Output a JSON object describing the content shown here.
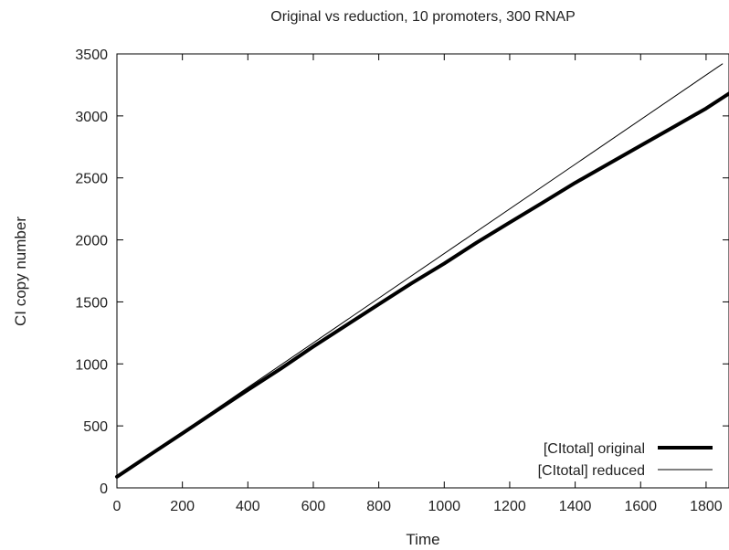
{
  "chart_data": {
    "type": "line",
    "title": "Original vs reduction, 10 promoters, 300 RNAP",
    "xlabel": "Time",
    "ylabel": "CI copy number",
    "xlim": [
      0,
      1870
    ],
    "ylim": [
      0,
      3500
    ],
    "xticks": [
      0,
      200,
      400,
      600,
      800,
      1000,
      1200,
      1400,
      1600,
      1800
    ],
    "yticks": [
      0,
      500,
      1000,
      1500,
      2000,
      2500,
      3000,
      3500
    ],
    "grid": false,
    "legend_position": "bottom-right",
    "series": [
      {
        "name": "[CItotal] original",
        "style": "thick",
        "color": "#000000",
        "x": [
          0,
          100,
          200,
          300,
          400,
          500,
          600,
          700,
          800,
          900,
          1000,
          1100,
          1200,
          1300,
          1400,
          1500,
          1600,
          1700,
          1800,
          1870
        ],
        "y": [
          90,
          265,
          440,
          615,
          790,
          960,
          1140,
          1310,
          1480,
          1650,
          1810,
          1980,
          2140,
          2300,
          2460,
          2610,
          2760,
          2910,
          3060,
          3180
        ]
      },
      {
        "name": "[CItotal] reduced",
        "style": "thin",
        "color": "#000000",
        "x": [
          0,
          1850
        ],
        "y": [
          90,
          3420
        ]
      }
    ]
  }
}
